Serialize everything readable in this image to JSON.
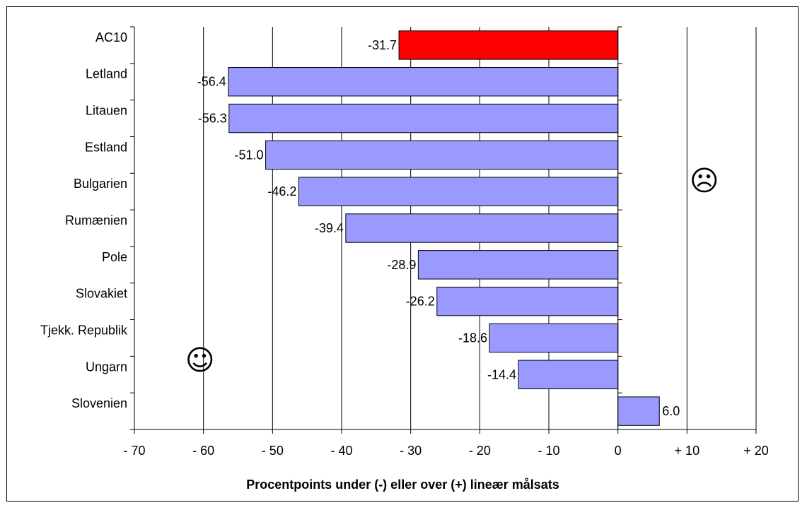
{
  "chart_data": {
    "type": "bar",
    "orientation": "horizontal",
    "categories": [
      "AC10",
      "Letland",
      "Litauen",
      "Estland",
      "Bulgarien",
      "Rumænien",
      "Pole",
      "Slovakiet",
      "Tjekk. Republik",
      "Ungarn",
      "Slovenien"
    ],
    "values": [
      -31.7,
      -56.4,
      -56.3,
      -51.0,
      -46.2,
      -39.4,
      -28.9,
      -26.2,
      -18.6,
      -14.4,
      6.0
    ],
    "value_labels": [
      "-31.7",
      "-56.4",
      "-56.3",
      "-51.0",
      "-46.2",
      "-39.4",
      "-28.9",
      "-26.2",
      "-18.6",
      "-14.4",
      "6.0"
    ],
    "xlabel": "Procentpoints under (-) eller over (+) lineær målsats",
    "xlim": [
      -70,
      20
    ],
    "x_ticks": [
      -70,
      -60,
      -50,
      -40,
      -30,
      -20,
      -10,
      0,
      10,
      20
    ],
    "x_tick_labels": [
      "- 70",
      "- 60",
      "- 50",
      "- 40",
      "- 30",
      "- 20",
      "- 10",
      "0",
      "+ 10",
      "+ 20"
    ],
    "grid": true,
    "colors": {
      "highlight": "#ff0000",
      "default": "#9999ff"
    },
    "highlight_index": 0,
    "annotations": [
      {
        "name": "smiley-face-icon",
        "text": "☺",
        "x": -60.5,
        "y_category": 8.6
      },
      {
        "name": "frowning-face-icon",
        "text": "☹",
        "x": 12.5,
        "y_category": 3.7
      }
    ]
  }
}
